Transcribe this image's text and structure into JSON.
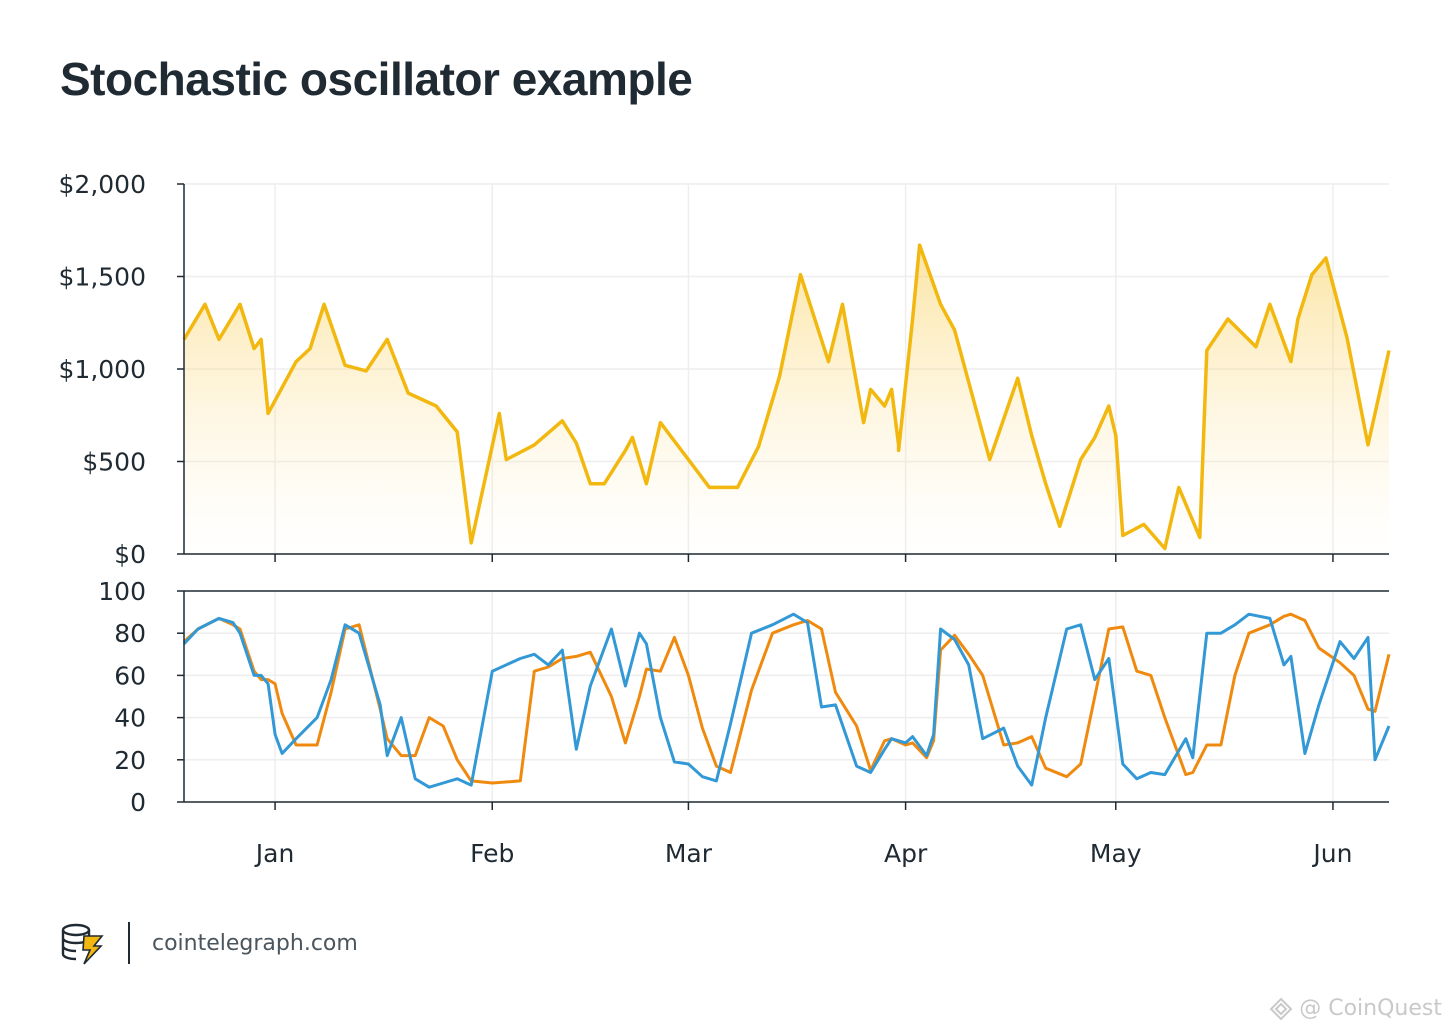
{
  "title": "Stochastic oscillator example",
  "footer": {
    "site": "cointelegraph.com",
    "logo_icon": "cointelegraph-logo-icon"
  },
  "watermark": {
    "text": "@ CoinQuest"
  },
  "colors": {
    "price": "#f2b80f",
    "fast": "#3399d6",
    "slow": "#f08a0f",
    "axis": "#1f2a33",
    "grid": "#eeeeee"
  },
  "chart_data": [
    {
      "type": "area",
      "ylabel": "",
      "xlabel": "",
      "ylim": [
        0,
        2000
      ],
      "yticks": [
        "$0",
        "$500",
        "$1,000",
        "$1,500",
        "$2,000"
      ],
      "ytick_values": [
        0,
        500,
        1000,
        1500,
        2000
      ],
      "months": [
        "Jan",
        "Feb",
        "Mar",
        "Apr",
        "May",
        "Jun"
      ],
      "x_range": [
        -13,
        159
      ],
      "x_unit": "day",
      "grid": true,
      "series": [
        {
          "x": [
            -13,
            -10,
            -8,
            -5,
            -3,
            -2,
            -1,
            3,
            5,
            7,
            10,
            13,
            16,
            19,
            23,
            26,
            28,
            32,
            33,
            37,
            41,
            43,
            45,
            47,
            50,
            51,
            53,
            55,
            59,
            62,
            66,
            69,
            72,
            75,
            79,
            81,
            84,
            85,
            87,
            88,
            89,
            89,
            91,
            92,
            95,
            97,
            102,
            106,
            108,
            110,
            112,
            115,
            117,
            119,
            120,
            121,
            124,
            127,
            129,
            132,
            133,
            136,
            140,
            142,
            145,
            146,
            148,
            150,
            153,
            156,
            159
          ],
          "values": [
            1160,
            1350,
            1160,
            1350,
            1110,
            1160,
            760,
            1040,
            1110,
            1350,
            1020,
            990,
            1160,
            870,
            800,
            660,
            60,
            760,
            510,
            590,
            720,
            600,
            380,
            380,
            560,
            630,
            380,
            710,
            510,
            360,
            360,
            580,
            960,
            1510,
            1040,
            1350,
            710,
            890,
            800,
            890,
            590,
            560,
            1270,
            1670,
            1350,
            1210,
            510,
            950,
            640,
            380,
            150,
            510,
            630,
            800,
            640,
            100,
            160,
            30,
            360,
            90,
            1100,
            1270,
            1120,
            1350,
            1040,
            1270,
            1510,
            1600,
            1170,
            590,
            1100
          ]
        }
      ]
    },
    {
      "type": "line",
      "ylabel": "",
      "xlabel": "",
      "ylim": [
        0,
        100
      ],
      "yticks": [
        "0",
        "20",
        "40",
        "60",
        "80",
        "100"
      ],
      "ytick_values": [
        0,
        20,
        40,
        60,
        80,
        100
      ],
      "months": [
        "Jan",
        "Feb",
        "Mar",
        "Apr",
        "May",
        "Jun"
      ],
      "x_range": [
        -13,
        159
      ],
      "x_unit": "day",
      "grid": true,
      "series": [
        {
          "x": [
            -13,
            -11,
            -8,
            -6,
            -5,
            -3,
            -2,
            -1,
            0,
            1,
            3,
            6,
            8,
            10,
            12,
            15,
            16,
            18,
            20,
            22,
            24,
            26,
            28,
            31,
            35,
            37,
            39,
            41,
            43,
            45,
            48,
            50,
            52,
            53,
            55,
            57,
            59,
            61,
            63,
            65,
            68,
            71,
            74,
            76,
            78,
            80,
            83,
            85,
            87,
            88,
            90,
            91,
            93,
            94,
            95,
            97,
            99,
            101,
            104,
            106,
            108,
            110,
            113,
            115,
            117,
            119,
            121,
            123,
            125,
            127,
            130,
            131,
            133,
            135,
            137,
            139,
            142,
            144,
            145,
            147,
            149,
            152,
            154,
            156,
            157,
            159
          ],
          "values": [
            76,
            82,
            87,
            84,
            82,
            62,
            58,
            58,
            56,
            42,
            27,
            27,
            52,
            82,
            84,
            44,
            30,
            22,
            22,
            40,
            36,
            20,
            10,
            9,
            10,
            62,
            64,
            68,
            69,
            71,
            50,
            28,
            50,
            63,
            62,
            78,
            60,
            35,
            17,
            14,
            53,
            80,
            84,
            86,
            82,
            52,
            36,
            15,
            29,
            30,
            27,
            28,
            21,
            29,
            72,
            79,
            70,
            60,
            27,
            28,
            31,
            16,
            12,
            18,
            50,
            82,
            83,
            62,
            60,
            40,
            13,
            14,
            27,
            27,
            60,
            80,
            84,
            88,
            89,
            86,
            73,
            66,
            60,
            44,
            43,
            70
          ]
        },
        {
          "x": [
            -13,
            -11,
            -8,
            -6,
            -5,
            -3,
            -2,
            -1,
            0,
            1,
            3,
            6,
            8,
            10,
            12,
            15,
            16,
            18,
            20,
            22,
            24,
            26,
            28,
            31,
            35,
            37,
            39,
            41,
            43,
            45,
            48,
            50,
            52,
            53,
            55,
            57,
            59,
            61,
            63,
            65,
            68,
            71,
            74,
            76,
            78,
            80,
            83,
            85,
            87,
            88,
            90,
            91,
            93,
            94,
            95,
            97,
            99,
            101,
            104,
            106,
            108,
            110,
            113,
            115,
            117,
            119,
            121,
            123,
            125,
            127,
            130,
            131,
            133,
            135,
            137,
            139,
            142,
            144,
            145,
            147,
            149,
            152,
            154,
            156,
            157,
            159
          ],
          "values": [
            75,
            82,
            87,
            85,
            80,
            60,
            60,
            56,
            32,
            23,
            30,
            40,
            58,
            84,
            80,
            46,
            22,
            40,
            11,
            7,
            9,
            11,
            8,
            62,
            68,
            70,
            65,
            72,
            25,
            55,
            82,
            55,
            80,
            75,
            40,
            19,
            18,
            12,
            10,
            37,
            80,
            84,
            89,
            85,
            45,
            46,
            17,
            14,
            25,
            30,
            28,
            31,
            22,
            32,
            82,
            77,
            65,
            30,
            35,
            17,
            8,
            40,
            82,
            84,
            58,
            68,
            18,
            11,
            14,
            13,
            30,
            21,
            80,
            80,
            84,
            89,
            87,
            65,
            69,
            23,
            46,
            76,
            68,
            78,
            20,
            36
          ]
        }
      ]
    }
  ]
}
